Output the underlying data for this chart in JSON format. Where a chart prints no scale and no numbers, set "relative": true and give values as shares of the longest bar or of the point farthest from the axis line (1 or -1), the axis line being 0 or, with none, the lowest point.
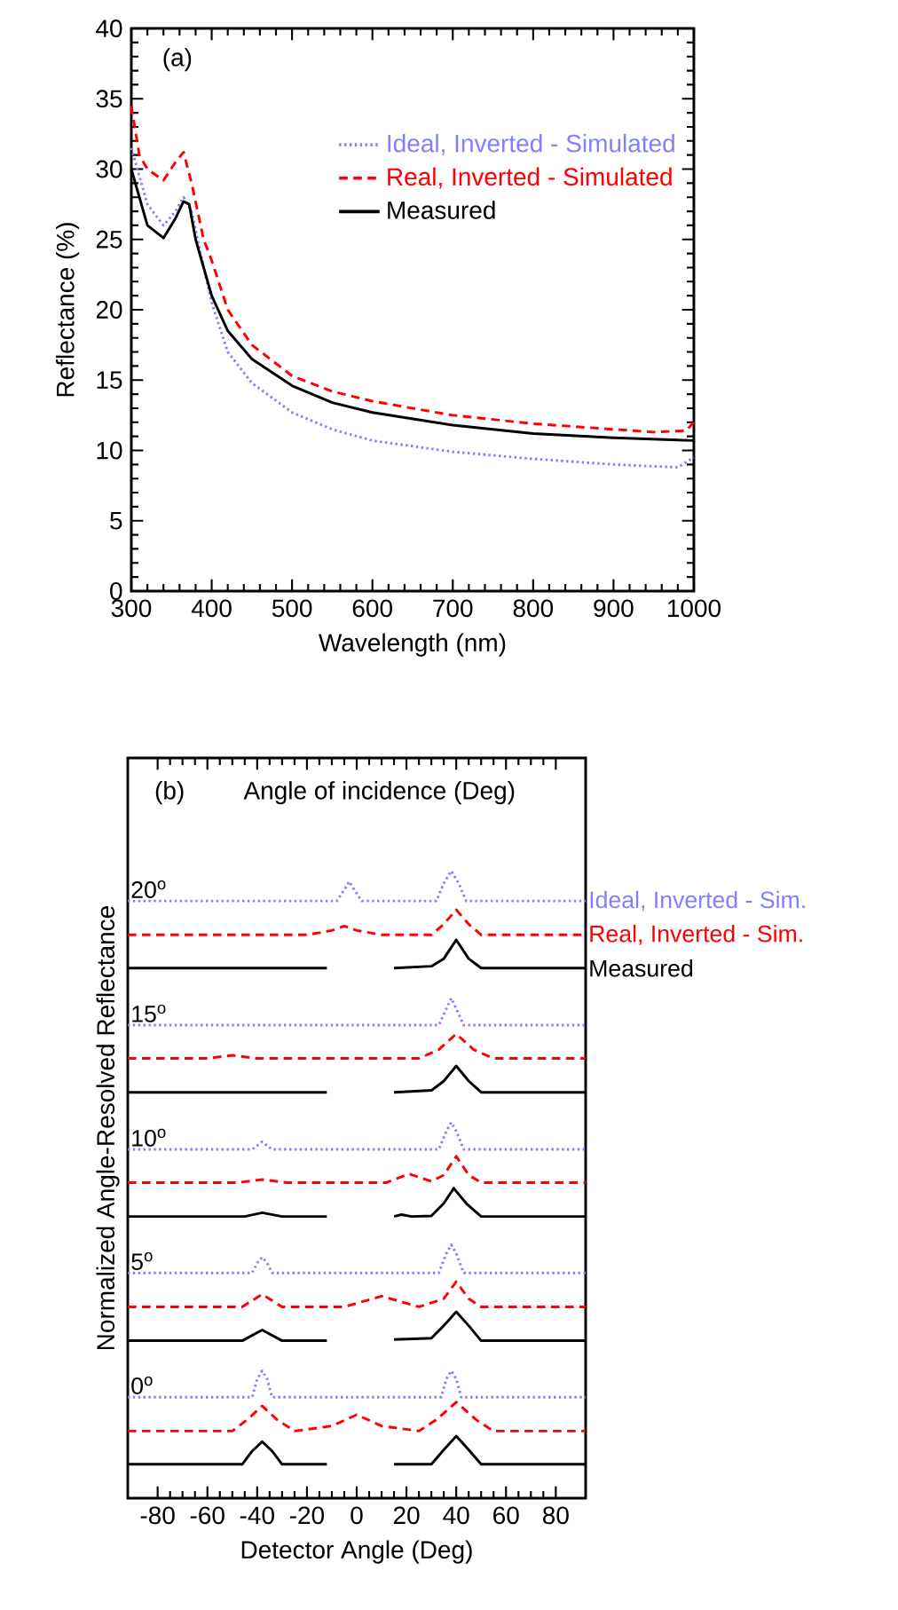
{
  "chart_data": [
    {
      "type": "line",
      "xlabel": "Wavelength (nm)",
      "ylabel": "Reflectance (%)",
      "xlim": [
        300,
        1000
      ],
      "ylim": [
        0,
        40
      ],
      "xticks": [
        300,
        400,
        500,
        600,
        700,
        800,
        900,
        1000
      ],
      "yticks": [
        0,
        5,
        10,
        15,
        20,
        25,
        30,
        35,
        40
      ],
      "legend": "top right",
      "annotations": [
        "(a)"
      ],
      "series": [
        {
          "name": "Ideal, Inverted - Simulated",
          "color": "#8080ff",
          "line_style": "dotted",
          "x": [
            300,
            320,
            340,
            355,
            365,
            375,
            390,
            400,
            420,
            450,
            500,
            550,
            600,
            700,
            800,
            900,
            980,
            1000
          ],
          "values": [
            31.5,
            27.5,
            26,
            27,
            28,
            27,
            23,
            20.5,
            17,
            14.8,
            12.7,
            11.5,
            10.7,
            9.9,
            9.4,
            9.0,
            8.8,
            9.5
          ]
        },
        {
          "name": "Real, Inverted - Simulated",
          "color": "#ff0000",
          "line_style": "dashed",
          "x": [
            300,
            310,
            320,
            340,
            355,
            365,
            375,
            390,
            400,
            420,
            450,
            500,
            550,
            600,
            700,
            800,
            900,
            950,
            990,
            1000
          ],
          "values": [
            34.5,
            31,
            30,
            29.2,
            30.5,
            31.2,
            29,
            25,
            23.5,
            20,
            17.5,
            15.3,
            14.2,
            13.5,
            12.5,
            11.9,
            11.5,
            11.3,
            11.4,
            12
          ]
        },
        {
          "name": "Measured",
          "color": "#000000",
          "line_style": "solid",
          "x": [
            300,
            320,
            340,
            355,
            365,
            372,
            380,
            400,
            420,
            450,
            500,
            550,
            600,
            700,
            800,
            900,
            1000
          ],
          "values": [
            30,
            26,
            25.1,
            26.5,
            27.7,
            27.5,
            25,
            21,
            18.5,
            16.5,
            14.6,
            13.4,
            12.7,
            11.8,
            11.2,
            10.9,
            10.7
          ]
        }
      ]
    },
    {
      "type": "line",
      "relative": true,
      "xlabel": "Detector Angle (Deg)",
      "ylabel": "Normalized Angle-Resolved Reflectance",
      "xlim": [
        -92,
        92
      ],
      "xticks": [
        -80,
        -60,
        -40,
        -20,
        0,
        20,
        40,
        60,
        80
      ],
      "tick_labels": "x",
      "annotations": [
        "(b)",
        "Angle of incidence (Deg)",
        "20$^{o}$",
        "15$^{o}$",
        "10$^{o}$",
        "5$^{o}$",
        "0$^{o}$"
      ],
      "series": [
        {
          "name": "Ideal, Inverted - Sim.",
          "color": "#8080ff",
          "line_style": "dotted",
          "x": [
            -92,
            -8,
            -5,
            -3,
            -1,
            2,
            32,
            35,
            38,
            41,
            44,
            92
          ],
          "values": [
            0.952,
            0.952,
            0.97,
            0.983,
            0.97,
            0.952,
            0.952,
            0.98,
            1.0,
            0.98,
            0.952,
            0.952
          ]
        },
        {
          "name": "Real, Inverted - Sim.",
          "color": "#ff0000",
          "line_style": "dashed",
          "x": [
            -92,
            -20,
            -10,
            -5,
            0,
            10,
            30,
            35,
            40,
            45,
            50,
            92
          ],
          "values": [
            0.898,
            0.898,
            0.905,
            0.912,
            0.905,
            0.898,
            0.898,
            0.915,
            0.938,
            0.915,
            0.898,
            0.898
          ]
        },
        {
          "name": "Measured",
          "color": "#000000",
          "line_style": "solid",
          "x": [
            -92,
            -12,
            0,
            15,
            30,
            35,
            40,
            45,
            50,
            92
          ],
          "values": [
            0.845,
            0.845,
            null,
            0.845,
            0.848,
            0.86,
            0.89,
            0.86,
            0.845,
            0.845
          ]
        },
        {
          "color": "#8080ff",
          "line_style": "dotted",
          "x": [
            -92,
            33,
            36,
            38,
            40,
            43,
            92
          ],
          "values": [
            0.754,
            0.754,
            0.78,
            0.797,
            0.78,
            0.754,
            0.754
          ]
        },
        {
          "color": "#ff0000",
          "line_style": "dashed",
          "x": [
            -92,
            -60,
            -50,
            -40,
            25,
            33,
            40,
            47,
            55,
            92
          ],
          "values": [
            0.701,
            0.701,
            0.706,
            0.701,
            0.701,
            0.715,
            0.74,
            0.715,
            0.701,
            0.701
          ]
        },
        {
          "color": "#000000",
          "line_style": "solid",
          "x": [
            -92,
            -12,
            0,
            15,
            30,
            35,
            40,
            45,
            50,
            92
          ],
          "values": [
            0.647,
            0.647,
            null,
            0.647,
            0.65,
            0.665,
            0.689,
            0.665,
            0.647,
            0.647
          ]
        },
        {
          "color": "#8080ff",
          "line_style": "dotted",
          "x": [
            -92,
            -42,
            -38,
            -34,
            33,
            36,
            38,
            40,
            43,
            92
          ],
          "values": [
            0.556,
            0.556,
            0.568,
            0.556,
            0.556,
            0.585,
            0.599,
            0.585,
            0.556,
            0.556
          ]
        },
        {
          "color": "#ff0000",
          "line_style": "dashed",
          "x": [
            -92,
            -48,
            -38,
            -28,
            12,
            21,
            30,
            35,
            40,
            45,
            50,
            92
          ],
          "values": [
            0.503,
            0.503,
            0.508,
            0.503,
            0.503,
            0.517,
            0.505,
            0.515,
            0.545,
            0.515,
            0.503,
            0.503
          ]
        },
        {
          "color": "#000000",
          "line_style": "solid",
          "x": [
            -92,
            -45,
            -38,
            -30,
            -12,
            0,
            15,
            18,
            22,
            30,
            35,
            39,
            44,
            50,
            92
          ],
          "values": [
            0.449,
            0.449,
            0.455,
            0.449,
            0.449,
            null,
            0.449,
            0.452,
            0.449,
            0.45,
            0.47,
            0.494,
            0.47,
            0.449,
            0.449
          ]
        },
        {
          "color": "#8080ff",
          "line_style": "dotted",
          "x": [
            -92,
            -42,
            -40,
            -38,
            -36,
            -34,
            33,
            36,
            38,
            40,
            43,
            92
          ],
          "values": [
            0.359,
            0.359,
            0.375,
            0.384,
            0.375,
            0.359,
            0.359,
            0.39,
            0.404,
            0.39,
            0.359,
            0.359
          ]
        },
        {
          "color": "#ff0000",
          "line_style": "dashed",
          "x": [
            -92,
            -46,
            -38,
            -30,
            -5,
            10,
            25,
            35,
            40,
            45,
            50,
            92
          ],
          "values": [
            0.305,
            0.305,
            0.325,
            0.305,
            0.305,
            0.322,
            0.305,
            0.318,
            0.345,
            0.318,
            0.305,
            0.305
          ]
        },
        {
          "color": "#000000",
          "line_style": "solid",
          "x": [
            -92,
            -46,
            -38,
            -30,
            -12,
            0,
            15,
            30,
            35,
            40,
            45,
            50,
            92
          ],
          "values": [
            0.251,
            0.251,
            0.268,
            0.251,
            0.251,
            null,
            0.253,
            0.255,
            0.275,
            0.297,
            0.275,
            0.251,
            0.251
          ]
        },
        {
          "color": "#8080ff",
          "line_style": "dotted",
          "x": [
            -92,
            -42,
            -40,
            -38,
            -36,
            -34,
            34,
            36,
            38,
            40,
            42,
            92
          ],
          "values": [
            0.161,
            0.161,
            0.19,
            0.203,
            0.19,
            0.161,
            0.161,
            0.19,
            0.203,
            0.19,
            0.161,
            0.161
          ]
        },
        {
          "color": "#ff0000",
          "line_style": "dashed",
          "x": [
            -92,
            -50,
            -44,
            -38,
            -32,
            -25,
            -10,
            0,
            10,
            25,
            32,
            40,
            48,
            55,
            92
          ],
          "values": [
            0.107,
            0.107,
            0.125,
            0.147,
            0.125,
            0.107,
            0.115,
            0.133,
            0.115,
            0.107,
            0.125,
            0.153,
            0.125,
            0.107,
            0.107
          ]
        },
        {
          "color": "#000000",
          "line_style": "solid",
          "x": [
            -92,
            -46,
            -42,
            -38,
            -34,
            -30,
            -12,
            0,
            15,
            30,
            35,
            40,
            45,
            50,
            92
          ],
          "values": [
            0.054,
            0.054,
            0.075,
            0.09,
            0.075,
            0.054,
            0.054,
            null,
            0.054,
            0.054,
            0.077,
            0.099,
            0.077,
            0.054,
            0.054
          ]
        }
      ]
    }
  ]
}
